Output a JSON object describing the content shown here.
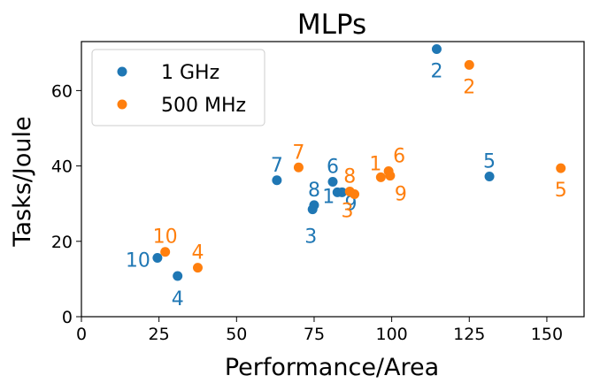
{
  "chart_data": {
    "type": "scatter",
    "title": "MLPs",
    "xlabel": "Performance/Area",
    "ylabel": "Tasks/Joule",
    "xlim": [
      0,
      162
    ],
    "ylim": [
      0,
      73
    ],
    "xticks": [
      0,
      25,
      50,
      75,
      100,
      125,
      150
    ],
    "yticks": [
      0,
      20,
      40,
      60
    ],
    "grid": false,
    "legend_position": "top-left",
    "series": [
      {
        "name": "1 GHz",
        "color": "#1f77b4",
        "points": [
          {
            "label": "1",
            "x": 82.5,
            "y": 33.0
          },
          {
            "label": "2",
            "x": 114.5,
            "y": 71.0
          },
          {
            "label": "3",
            "x": 74.5,
            "y": 28.5
          },
          {
            "label": "4",
            "x": 31.0,
            "y": 10.8
          },
          {
            "label": "5",
            "x": 131.5,
            "y": 37.2
          },
          {
            "label": "6",
            "x": 81.0,
            "y": 35.8
          },
          {
            "label": "7",
            "x": 63.0,
            "y": 36.2
          },
          {
            "label": "8",
            "x": 75.0,
            "y": 29.6
          },
          {
            "label": "9",
            "x": 84.0,
            "y": 33.0
          },
          {
            "label": "10",
            "x": 24.5,
            "y": 15.6
          }
        ]
      },
      {
        "name": "500 MHz",
        "color": "#ff7f0e",
        "points": [
          {
            "label": "1",
            "x": 96.5,
            "y": 37.0
          },
          {
            "label": "2",
            "x": 125.0,
            "y": 66.8
          },
          {
            "label": "3",
            "x": 88.0,
            "y": 32.5
          },
          {
            "label": "4",
            "x": 37.5,
            "y": 13.0
          },
          {
            "label": "5",
            "x": 154.5,
            "y": 39.4
          },
          {
            "label": "6",
            "x": 99.0,
            "y": 38.6
          },
          {
            "label": "7",
            "x": 70.0,
            "y": 39.6
          },
          {
            "label": "8",
            "x": 86.5,
            "y": 33.2
          },
          {
            "label": "9",
            "x": 99.5,
            "y": 37.4
          },
          {
            "label": "10",
            "x": 27.0,
            "y": 17.2
          }
        ]
      }
    ]
  }
}
